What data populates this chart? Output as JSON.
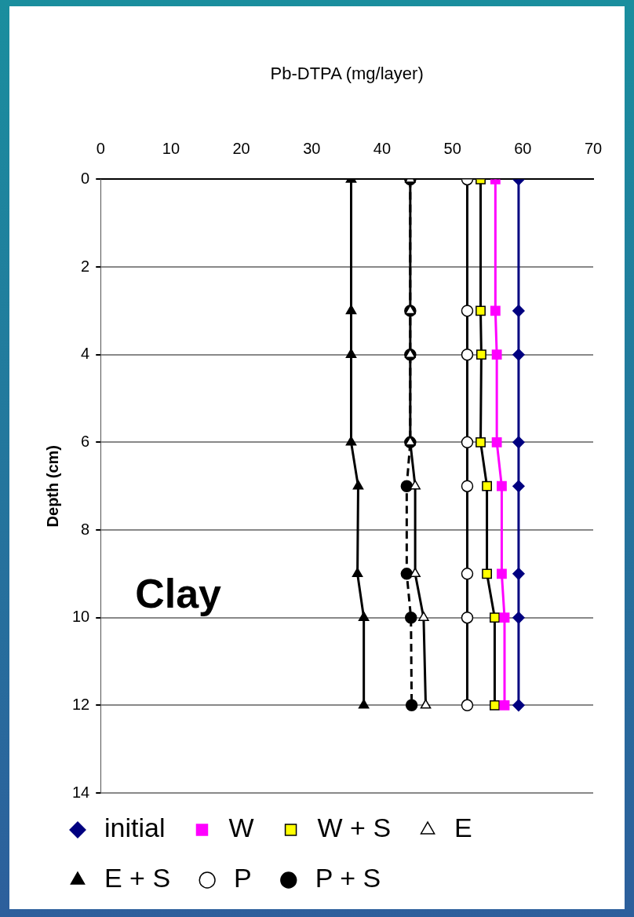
{
  "chart_data": {
    "type": "line",
    "xlabel": "Pb-DTPA (mg/layer)",
    "ylabel": "Depth (cm)",
    "xlim": [
      0,
      70
    ],
    "xticks": [
      0,
      10,
      20,
      30,
      40,
      50,
      60,
      70
    ],
    "ylim": [
      14,
      0
    ],
    "yticks": [
      0,
      2,
      4,
      6,
      8,
      10,
      12,
      14
    ],
    "grid": "y",
    "legend": "bottom",
    "annotations": [
      "Clay"
    ],
    "series": [
      {
        "name": "initial",
        "color": "#000080",
        "marker": "diamond",
        "line_style": "solid",
        "x": [
          59.4,
          59.4,
          59.4,
          59.4,
          59.4,
          59.4,
          59.4,
          59.4
        ],
        "values": [
          0,
          3,
          4,
          6,
          7,
          9,
          10,
          12
        ]
      },
      {
        "name": "W",
        "color": "#ff00ff",
        "marker": "square",
        "line_style": "solid",
        "x": [
          56.1,
          56.1,
          56.3,
          56.3,
          57,
          57,
          57.4,
          57.4
        ],
        "values": [
          0,
          3,
          4,
          6,
          7,
          9,
          10,
          12
        ]
      },
      {
        "name": "W + S",
        "color": "#000000",
        "colors": [
          "#ffff00",
          "#ffff00",
          "#ffff00",
          "#ffff00",
          "#ffff00",
          "#ffff00",
          "#ffff00",
          "#ffff00"
        ],
        "marker": "square",
        "line_style": "solid",
        "x": [
          54,
          54,
          54.1,
          54,
          54.9,
          54.9,
          56,
          56
        ],
        "values": [
          0,
          3,
          4,
          6,
          7,
          9,
          10,
          12
        ]
      },
      {
        "name": "E",
        "color": "#000000",
        "colors": [
          "#ffffff",
          "#ffffff",
          "#ffffff",
          "#ffffff",
          "#ffffff",
          "#ffffff",
          "#ffffff",
          "#ffffff"
        ],
        "marker": "triangle",
        "line_style": "solid",
        "x": [
          44,
          44,
          44,
          44,
          44.7,
          44.7,
          45.9,
          46.2
        ],
        "values": [
          0,
          3,
          4,
          6,
          7,
          9,
          10,
          12
        ]
      },
      {
        "name": "E + S",
        "color": "#000000",
        "marker": "triangle",
        "line_style": "solid",
        "x": [
          35.6,
          35.6,
          35.6,
          35.6,
          36.6,
          36.5,
          37.4,
          37.4
        ],
        "values": [
          0,
          3,
          4,
          6,
          7,
          9,
          10,
          12
        ]
      },
      {
        "name": "P",
        "color": "#000000",
        "colors": [
          "#ffffff",
          "#ffffff",
          "#ffffff",
          "#ffffff",
          "#ffffff",
          "#ffffff",
          "#ffffff",
          "#ffffff"
        ],
        "marker": "circle",
        "line_style": "solid",
        "x": [
          52.1,
          52.1,
          52.1,
          52.1,
          52.1,
          52.1,
          52.1,
          52.1
        ],
        "values": [
          0,
          3,
          4,
          6,
          7,
          9,
          10,
          12
        ]
      },
      {
        "name": "P + S",
        "color": "#000000",
        "marker": "circle",
        "line_style": "dashed",
        "x": [
          44,
          44,
          44,
          44,
          43.5,
          43.5,
          44.1,
          44.2
        ],
        "values": [
          0,
          3,
          4,
          6,
          7,
          9,
          10,
          12
        ]
      }
    ]
  }
}
